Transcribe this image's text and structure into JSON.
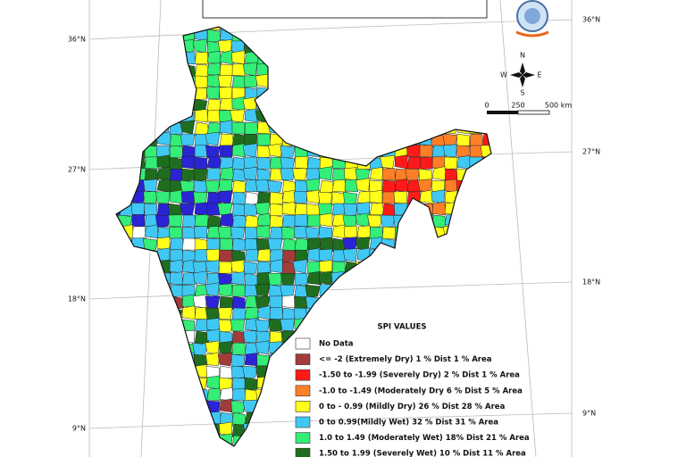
{
  "map": {
    "graticule": {
      "left": [
        "36°N",
        "27°N",
        "18°N",
        "9°N"
      ],
      "right": [
        "36°N",
        "27°N",
        "18°N",
        "9°N"
      ]
    },
    "compass": {
      "n": "N",
      "s": "S",
      "e": "E",
      "w": "W"
    },
    "scale": {
      "labels": [
        "0",
        "250",
        "500 km"
      ]
    },
    "legend": {
      "title": "SPI VALUES",
      "items": [
        {
          "label": "No Data",
          "color": "#ffffff"
        },
        {
          "label": "<= -2 (Extremely Dry) 1 % Dist 1 % Area",
          "color": "#a33b3b"
        },
        {
          "label": "-1.50 to -1.99 (Severely Dry) 2 % Dist 1 % Area",
          "color": "#ff1a1a"
        },
        {
          "label": "-1.0 to -1.49 (Moderately Dry 6 % Dist 5 % Area",
          "color": "#ff7f27"
        },
        {
          "label": "0 to - 0.99 (Mildly Dry) 26 % Dist 28 % Area",
          "color": "#ffff1a"
        },
        {
          "label": "0 to  0.99(Mildly Wet)  32 % Dist 31 % Area",
          "color": "#40c8f4"
        },
        {
          "label": "1.0 to 1.49 (Moderately Wet) 18% Dist 21 % Area",
          "color": "#33ee77"
        },
        {
          "label": "1.50 to 1.99 (Severely Wet) 10 % Dist 11 % Area",
          "color": "#1f6e1f"
        }
      ]
    }
  }
}
